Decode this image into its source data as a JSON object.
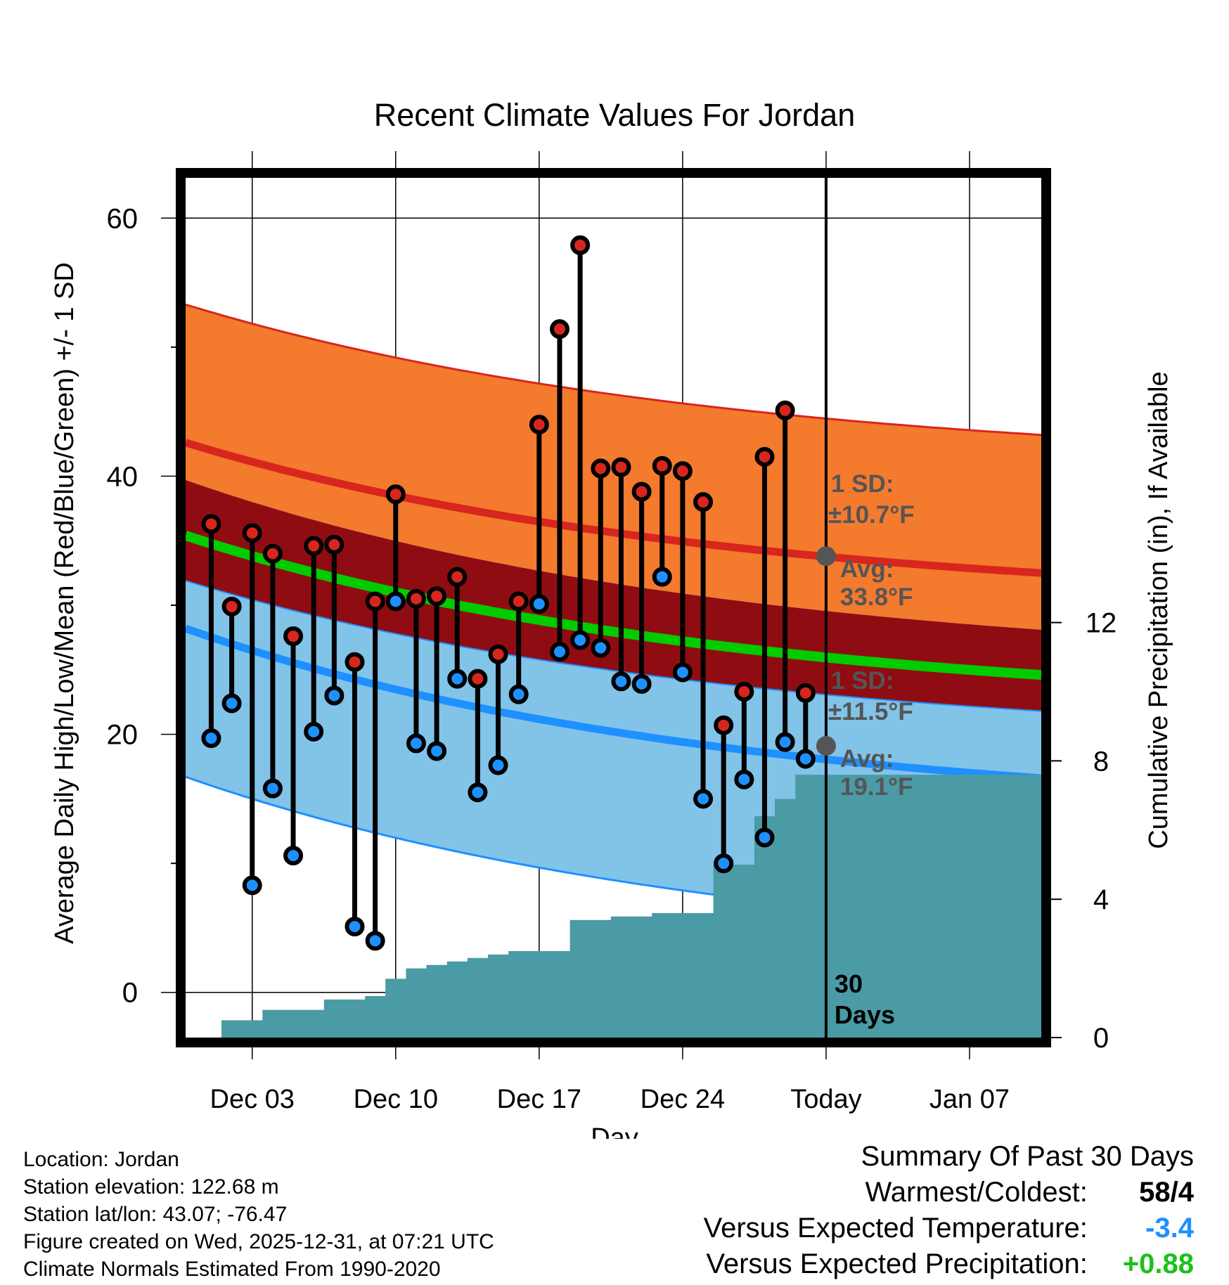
{
  "chart_data": {
    "type": "line",
    "title": "Recent Climate Values For Jordan",
    "xlabel": "Day",
    "ylabel_left": "Average Daily High/Low/Mean (Red/Blue/Green) +/- 1 SD",
    "ylabel_right": "Cumulative Precipitation (in), If Available",
    "x_ticks": [
      {
        "day": 3,
        "label": "Dec 03"
      },
      {
        "day": 10,
        "label": "Dec 10"
      },
      {
        "day": 17,
        "label": "Dec 17"
      },
      {
        "day": 24,
        "label": "Dec 24"
      },
      {
        "day": 31,
        "label": "Today"
      },
      {
        "day": 38,
        "label": "Jan 07"
      }
    ],
    "xlim": [
      -0.25,
      41.5
    ],
    "ylim_left": [
      -3.5,
      63.5
    ],
    "yticks_left": [
      0,
      20,
      40,
      60
    ],
    "ylim_right": [
      0,
      25
    ],
    "yticks_right": [
      0,
      4,
      8,
      12
    ],
    "days": [
      1,
      2,
      3,
      4,
      5,
      6,
      7,
      8,
      9,
      10,
      11,
      12,
      13,
      14,
      15,
      16,
      17,
      18,
      19,
      20,
      21,
      22,
      23,
      24,
      25,
      26,
      27,
      28,
      29,
      30
    ],
    "observed_highs": [
      36.3,
      29.9,
      35.6,
      34.0,
      27.6,
      34.6,
      34.7,
      25.6,
      30.3,
      38.6,
      30.5,
      30.7,
      32.2,
      24.3,
      26.2,
      30.3,
      44.0,
      51.4,
      57.9,
      40.6,
      40.7,
      38.8,
      40.8,
      40.4,
      38.0,
      20.7,
      23.3,
      41.5,
      45.1,
      23.2
    ],
    "observed_lows": [
      19.7,
      22.4,
      8.3,
      15.8,
      10.6,
      20.2,
      23.0,
      5.1,
      4.0,
      30.3,
      19.3,
      18.7,
      24.3,
      15.5,
      17.6,
      23.1,
      30.1,
      26.4,
      27.3,
      26.7,
      24.1,
      23.9,
      32.2,
      24.8,
      15.0,
      10.0,
      16.5,
      12.0,
      19.4,
      18.1
    ],
    "normal_high": {
      "start": 42.6,
      "end": 32.5,
      "today": 33.8,
      "sd": 10.7
    },
    "normal_low": {
      "start": 28.2,
      "end": 16.6,
      "today": 19.1,
      "sd": 11.5
    },
    "normal_mean": {
      "start": 35.4,
      "end": 24.6
    },
    "precip_cumulative": [
      0.0,
      0.5,
      0.5,
      0.8,
      0.8,
      0.8,
      1.1,
      1.1,
      1.2,
      1.7,
      2.0,
      2.1,
      2.2,
      2.3,
      2.4,
      2.5,
      2.5,
      2.5,
      3.4,
      3.4,
      3.5,
      3.5,
      3.6,
      3.6,
      3.6,
      5.0,
      5.0,
      6.4,
      6.9,
      7.6,
      7.6
    ],
    "precip_today_flat": 7.6,
    "series": [
      {
        "name": "Normal High",
        "color": "#d7261e"
      },
      {
        "name": "Normal Low",
        "color": "#1e90ff"
      },
      {
        "name": "Normal Mean",
        "color": "#00cc00"
      },
      {
        "name": "Cumulative Precipitation",
        "color": "#4a9ba5"
      }
    ],
    "annotations": {
      "high_sd_label1": "1 SD:",
      "high_sd_label2": "±10.7°F",
      "high_avg_label1": "Avg:",
      "high_avg_label2": "33.8°F",
      "low_sd_label1": "1 SD:",
      "low_sd_label2": "±11.5°F",
      "low_avg_label1": "Avg:",
      "low_avg_label2": "19.1°F",
      "days_label1": "30",
      "days_label2": "Days"
    }
  },
  "colors": {
    "high_band": "#f47a2e",
    "overlap_band": "#8f0d12",
    "low_band": "#82c3e8",
    "high_line": "#d7261e",
    "low_line": "#1e90ff",
    "mean_line": "#00cc00",
    "precip": "#4a9ba5",
    "annotation": "#555555"
  },
  "info": {
    "location": "Location: Jordan",
    "elevation": "Station elevation: 122.68 m",
    "latlon": "Station lat/lon: 43.07; -76.47",
    "created": "Figure created on Wed, 2025-12-31, at 07:21 UTC",
    "normals": "Climate Normals Estimated From 1990-2020"
  },
  "summary": {
    "title": "Summary Of Past 30 Days",
    "warm_cold_label": "Warmest/Coldest:",
    "warm_value": "58",
    "cold_value": "/4",
    "temp_label": "Versus Expected Temperature:",
    "temp_value": "-3.4",
    "precip_label": "Versus Expected Precipitation:",
    "precip_value": "+0.88"
  }
}
